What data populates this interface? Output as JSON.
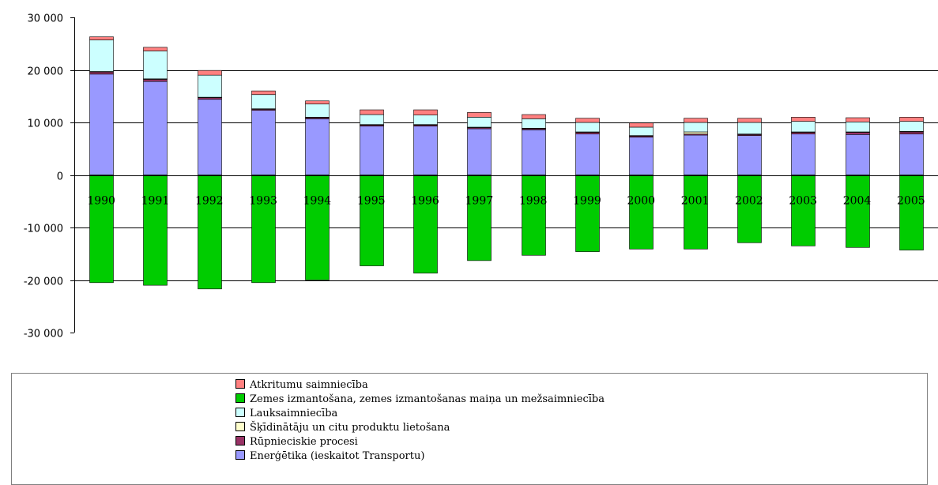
{
  "chart_data": {
    "type": "bar",
    "stacked": true,
    "categories": [
      "1990",
      "1991",
      "1992",
      "1993",
      "1994",
      "1995",
      "1996",
      "1997",
      "1998",
      "1999",
      "2000",
      "2001",
      "2002",
      "2003",
      "2004",
      "2005"
    ],
    "ylim": [
      -30000,
      30000
    ],
    "yticks": [
      30000,
      20000,
      10000,
      0,
      -10000,
      -20000,
      -30000
    ],
    "ytick_labels": [
      "30 000",
      "20 000",
      "10 000",
      "0",
      "-10 000",
      "-20 000",
      "-30 000"
    ],
    "grid": true,
    "legend_position": "bottom",
    "series": [
      {
        "name": "Enerģētika (ieskaitot Transportu)",
        "color": "#9999ff",
        "values": [
          19200,
          17800,
          14400,
          12300,
          10700,
          9300,
          9300,
          8800,
          8600,
          7800,
          7200,
          7600,
          7500,
          7800,
          7700,
          7800
        ]
      },
      {
        "name": "Rūpnieciskie procesi",
        "color": "#993366",
        "values": [
          400,
          400,
          300,
          200,
          200,
          200,
          200,
          200,
          200,
          300,
          200,
          200,
          200,
          300,
          400,
          400
        ]
      },
      {
        "name": "Šķīdinātāju un citu produktu lietošana",
        "color": "#ffffcc",
        "values": [
          100,
          100,
          100,
          100,
          100,
          100,
          100,
          100,
          100,
          100,
          100,
          400,
          100,
          100,
          100,
          100
        ]
      },
      {
        "name": "Lauksaimniecība",
        "color": "#ccffff",
        "values": [
          6000,
          5300,
          4200,
          2700,
          2500,
          1900,
          1800,
          1900,
          1800,
          1800,
          1600,
          1800,
          2200,
          2000,
          1900,
          1900
        ]
      },
      {
        "name": "Atkritumu saimniecība",
        "color": "#ff8080",
        "values": [
          600,
          700,
          900,
          700,
          600,
          900,
          1000,
          900,
          800,
          800,
          800,
          800,
          800,
          800,
          800,
          800
        ]
      },
      {
        "name": "Zemes izmantošana, zemes izmantošanas maiņa un mežsaimniecība",
        "color": "#00cc00",
        "values": [
          -20500,
          -21000,
          -21700,
          -20500,
          -20000,
          -17300,
          -18700,
          -16300,
          -15300,
          -14600,
          -14100,
          -14100,
          -12900,
          -13500,
          -13800,
          -14300
        ]
      }
    ],
    "legend_order": [
      "Atkritumu saimniecība",
      "Zemes izmantošana, zemes izmantošanas maiņa un mežsaimniecība",
      "Lauksaimniecība",
      "Šķīdinātāju un citu produktu lietošana",
      "Rūpnieciskie procesi",
      "Enerģētika (ieskaitot Transportu)"
    ]
  }
}
